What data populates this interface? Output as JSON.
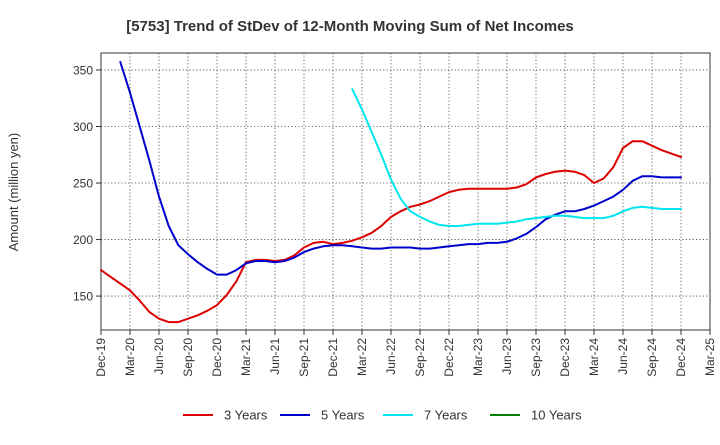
{
  "chart_data": {
    "type": "line",
    "title": "[5753]  Trend of StDev of 12-Month Moving Sum of Net Incomes",
    "ylabel": "Amount (million yen)",
    "xlabel": "",
    "ylim": [
      120,
      365
    ],
    "yticks": [
      150,
      200,
      250,
      300,
      350
    ],
    "xlim": [
      "Dec-19",
      "Mar-25"
    ],
    "xtick_labels": [
      "Dec-19",
      "Mar-20",
      "Jun-20",
      "Sep-20",
      "Dec-20",
      "Mar-21",
      "Jun-21",
      "Sep-21",
      "Dec-21",
      "Mar-22",
      "Jun-22",
      "Sep-22",
      "Dec-22",
      "Mar-23",
      "Jun-23",
      "Sep-23",
      "Dec-23",
      "Mar-24",
      "Jun-24",
      "Sep-24",
      "Dec-24",
      "Mar-25"
    ],
    "grid": true,
    "legend": "bottom",
    "series": [
      {
        "name": "3 Years",
        "color": "#dd0000",
        "points": [
          [
            "Dec-19",
            173
          ],
          [
            "Jan-20",
            167
          ],
          [
            "Feb-20",
            161
          ],
          [
            "Mar-20",
            155
          ],
          [
            "Apr-20",
            146
          ],
          [
            "May-20",
            136
          ],
          [
            "Jun-20",
            130
          ],
          [
            "Jul-20",
            127
          ],
          [
            "Aug-20",
            127
          ],
          [
            "Sep-20",
            130
          ],
          [
            "Oct-20",
            133
          ],
          [
            "Nov-20",
            137
          ],
          [
            "Dec-20",
            142
          ],
          [
            "Jan-21",
            151
          ],
          [
            "Feb-21",
            163
          ],
          [
            "Mar-21",
            180
          ],
          [
            "Apr-21",
            182
          ],
          [
            "May-21",
            182
          ],
          [
            "Jun-21",
            181
          ],
          [
            "Jul-21",
            182
          ],
          [
            "Aug-21",
            186
          ],
          [
            "Sep-21",
            193
          ],
          [
            "Oct-21",
            197
          ],
          [
            "Nov-21",
            198
          ],
          [
            "Dec-21",
            196
          ],
          [
            "Jan-22",
            197
          ],
          [
            "Feb-22",
            199
          ],
          [
            "Mar-22",
            202
          ],
          [
            "Apr-22",
            206
          ],
          [
            "May-22",
            212
          ],
          [
            "Jun-22",
            220
          ],
          [
            "Jul-22",
            225
          ],
          [
            "Aug-22",
            229
          ],
          [
            "Sep-22",
            231
          ],
          [
            "Oct-22",
            234
          ],
          [
            "Nov-22",
            238
          ],
          [
            "Dec-22",
            242
          ],
          [
            "Jan-23",
            244
          ],
          [
            "Feb-23",
            245
          ],
          [
            "Mar-23",
            245
          ],
          [
            "Apr-23",
            245
          ],
          [
            "May-23",
            245
          ],
          [
            "Jun-23",
            245
          ],
          [
            "Jul-23",
            246
          ],
          [
            "Aug-23",
            249
          ],
          [
            "Sep-23",
            255
          ],
          [
            "Oct-23",
            258
          ],
          [
            "Nov-23",
            260
          ],
          [
            "Dec-23",
            261
          ],
          [
            "Jan-24",
            260
          ],
          [
            "Feb-24",
            257
          ],
          [
            "Mar-24",
            250
          ],
          [
            "Apr-24",
            254
          ],
          [
            "May-24",
            264
          ],
          [
            "Jun-24",
            281
          ],
          [
            "Jul-24",
            287
          ],
          [
            "Aug-24",
            287
          ],
          [
            "Sep-24",
            283
          ],
          [
            "Oct-24",
            279
          ],
          [
            "Nov-24",
            276
          ],
          [
            "Dec-24",
            273
          ]
        ]
      },
      {
        "name": "5 Years",
        "color": "#0000cc",
        "points": [
          [
            "Feb-20",
            357
          ],
          [
            "Mar-20",
            330
          ],
          [
            "Apr-20",
            300
          ],
          [
            "May-20",
            270
          ],
          [
            "Jun-20",
            238
          ],
          [
            "Jul-20",
            212
          ],
          [
            "Aug-20",
            195
          ],
          [
            "Sep-20",
            187
          ],
          [
            "Oct-20",
            180
          ],
          [
            "Nov-20",
            174
          ],
          [
            "Dec-20",
            169
          ],
          [
            "Jan-21",
            169
          ],
          [
            "Feb-21",
            173
          ],
          [
            "Mar-21",
            179
          ],
          [
            "Apr-21",
            181
          ],
          [
            "May-21",
            181
          ],
          [
            "Jun-21",
            180
          ],
          [
            "Jul-21",
            181
          ],
          [
            "Aug-21",
            184
          ],
          [
            "Sep-21",
            189
          ],
          [
            "Oct-21",
            192
          ],
          [
            "Nov-21",
            194
          ],
          [
            "Dec-21",
            195
          ],
          [
            "Jan-22",
            195
          ],
          [
            "Feb-22",
            194
          ],
          [
            "Mar-22",
            193
          ],
          [
            "Apr-22",
            192
          ],
          [
            "May-22",
            192
          ],
          [
            "Jun-22",
            193
          ],
          [
            "Jul-22",
            193
          ],
          [
            "Aug-22",
            193
          ],
          [
            "Sep-22",
            192
          ],
          [
            "Oct-22",
            192
          ],
          [
            "Nov-22",
            193
          ],
          [
            "Dec-22",
            194
          ],
          [
            "Jan-23",
            195
          ],
          [
            "Feb-23",
            196
          ],
          [
            "Mar-23",
            196
          ],
          [
            "Apr-23",
            197
          ],
          [
            "May-23",
            197
          ],
          [
            "Jun-23",
            198
          ],
          [
            "Jul-23",
            201
          ],
          [
            "Aug-23",
            205
          ],
          [
            "Sep-23",
            211
          ],
          [
            "Oct-23",
            218
          ],
          [
            "Nov-23",
            222
          ],
          [
            "Dec-23",
            225
          ],
          [
            "Jan-24",
            225
          ],
          [
            "Feb-24",
            227
          ],
          [
            "Mar-24",
            230
          ],
          [
            "Apr-24",
            234
          ],
          [
            "May-24",
            238
          ],
          [
            "Jun-24",
            244
          ],
          [
            "Jul-24",
            252
          ],
          [
            "Aug-24",
            256
          ],
          [
            "Sep-24",
            256
          ],
          [
            "Oct-24",
            255
          ],
          [
            "Nov-24",
            255
          ],
          [
            "Dec-24",
            255
          ]
        ]
      },
      {
        "name": "7 Years",
        "color": "#00e5ee",
        "points": [
          [
            "Feb-22",
            333
          ],
          [
            "Mar-22",
            315
          ],
          [
            "Apr-22",
            295
          ],
          [
            "May-22",
            275
          ],
          [
            "Jun-22",
            253
          ],
          [
            "Jul-22",
            236
          ],
          [
            "Aug-22",
            225
          ],
          [
            "Sep-22",
            220
          ],
          [
            "Oct-22",
            216
          ],
          [
            "Nov-22",
            213
          ],
          [
            "Dec-22",
            212
          ],
          [
            "Jan-23",
            212
          ],
          [
            "Feb-23",
            213
          ],
          [
            "Mar-23",
            214
          ],
          [
            "Apr-23",
            214
          ],
          [
            "May-23",
            214
          ],
          [
            "Jun-23",
            215
          ],
          [
            "Jul-23",
            216
          ],
          [
            "Aug-23",
            218
          ],
          [
            "Sep-23",
            219
          ],
          [
            "Oct-23",
            220
          ],
          [
            "Nov-23",
            221
          ],
          [
            "Dec-23",
            221
          ],
          [
            "Jan-24",
            220
          ],
          [
            "Feb-24",
            219
          ],
          [
            "Mar-24",
            219
          ],
          [
            "Apr-24",
            219
          ],
          [
            "May-24",
            221
          ],
          [
            "Jun-24",
            225
          ],
          [
            "Jul-24",
            228
          ],
          [
            "Aug-24",
            229
          ],
          [
            "Sep-24",
            228
          ],
          [
            "Oct-24",
            227
          ],
          [
            "Nov-24",
            227
          ],
          [
            "Dec-24",
            227
          ]
        ]
      },
      {
        "name": "10 Years",
        "color": "#008000",
        "points": []
      }
    ]
  }
}
